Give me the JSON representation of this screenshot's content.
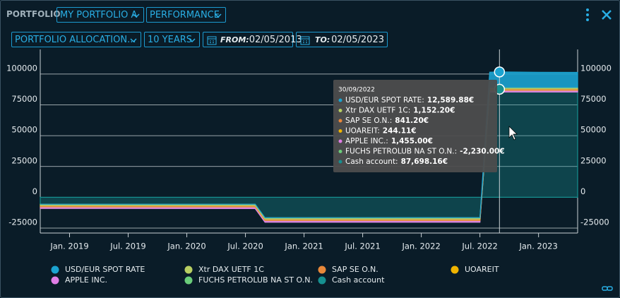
{
  "header": {
    "title": "PORTFOLIO",
    "portfolio": "MY PORTFOLIO A",
    "view": "PERFORMANCE"
  },
  "controls": {
    "allocation": "PORTFOLIO ALLOCATION...",
    "range": "10 YEARS",
    "from_label": "FROM:",
    "from": "02/05/2013",
    "to_label": "TO:",
    "to": "02/05/2023"
  },
  "chart_data": {
    "type": "area",
    "x": [
      "2018-10",
      "2019-06",
      "2020-02",
      "2020-08",
      "2020-09",
      "2021-06",
      "2022-03",
      "2022-07",
      "2022-08",
      "2022-09",
      "2023-01",
      "2023-05"
    ],
    "xlim": [
      "2018-10",
      "2023-05"
    ],
    "xticks": [
      {
        "value": "2019-01",
        "label": "Jan. 2019"
      },
      {
        "value": "2019-07",
        "label": "Jul. 2019"
      },
      {
        "value": "2020-01",
        "label": "Jan. 2020"
      },
      {
        "value": "2020-07",
        "label": "Jul. 2020"
      },
      {
        "value": "2021-01",
        "label": "Jan. 2021"
      },
      {
        "value": "2021-07",
        "label": "Jul. 2021"
      },
      {
        "value": "2022-01",
        "label": "Jan. 2022"
      },
      {
        "value": "2022-07",
        "label": "Jul. 2022"
      },
      {
        "value": "2023-01",
        "label": "Jan. 2023"
      }
    ],
    "ylim": [
      -29000,
      120000
    ],
    "yticks": [
      -25000,
      0,
      25000,
      50000,
      75000,
      100000
    ],
    "grid": true,
    "series": [
      {
        "name": "USD/EUR SPOT RATE",
        "color": "#1ba3d0",
        "values": [
          0,
          0,
          0,
          0,
          0,
          0,
          0,
          0,
          12400,
          12589.88,
          12300,
          12200
        ]
      },
      {
        "name": "Xtr DAX UETF 1C",
        "color": "#b8cf62",
        "values": [
          1000,
          1020,
          1050,
          1080,
          1100,
          1120,
          1150,
          1140,
          1150,
          1152.2,
          1160,
          1170
        ]
      },
      {
        "name": "SAP SE O.N.",
        "color": "#e8883a",
        "values": [
          800,
          810,
          820,
          830,
          840,
          845,
          850,
          845,
          842,
          841.2,
          850,
          860
        ]
      },
      {
        "name": "UOAREIT",
        "color": "#f0b400",
        "values": [
          250,
          248,
          246,
          244,
          244,
          245,
          244,
          244,
          244,
          244.11,
          245,
          246
        ]
      },
      {
        "name": "APPLE INC.",
        "color": "#e07ee6",
        "values": [
          1300,
          1320,
          1350,
          1380,
          1400,
          1420,
          1450,
          1450,
          1455,
          1455,
          1460,
          1470
        ]
      },
      {
        "name": "FUCHS PETROLUB NA ST O.N.",
        "color": "#6acd7a",
        "values": [
          -2000,
          -2050,
          -2100,
          -2150,
          -2200,
          -2200,
          -2220,
          -2230,
          -2230,
          -2230,
          -2240,
          -2250
        ]
      },
      {
        "name": "Cash account",
        "color": "#169090",
        "values": [
          -7000,
          -7000,
          -7000,
          -7000,
          -18000,
          -18000,
          -18000,
          -18000,
          87698.16,
          87698.16,
          87700,
          87700
        ]
      }
    ],
    "tooltip": {
      "x_index": 9,
      "date": "30/09/2022",
      "labels": [
        "USD/EUR SPOT RATE:",
        "Xtr DAX UETF 1C:",
        "SAP SE O.N.:",
        "UOAREIT:",
        "APPLE INC.:",
        "FUCHS PETROLUB NA ST O.N.:",
        "Cash account:"
      ],
      "value_labels": [
        "12,589.88€",
        "1,152.20€",
        "841.20€",
        "244.11€",
        "1,455.00€",
        "-2,230.00€",
        "87,698.16€"
      ]
    }
  }
}
